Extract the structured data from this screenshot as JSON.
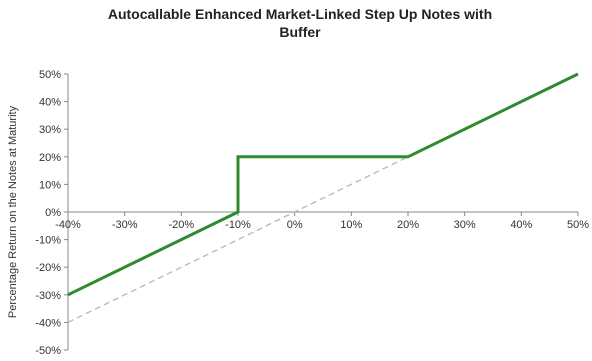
{
  "chart_data": {
    "type": "line",
    "title_lines": [
      "Autocallable Enhanced Market-Linked Step Up Notes with",
      "Buffer"
    ],
    "xlabel": "",
    "ylabel": "Percentage Return on the Notes at Maturity",
    "xlim": [
      -40,
      50
    ],
    "ylim": [
      -50,
      50
    ],
    "x_ticks": [
      "-40%",
      "-30%",
      "-20%",
      "-10%",
      "0%",
      "10%",
      "20%",
      "30%",
      "40%",
      "50%"
    ],
    "y_ticks": [
      "50%",
      "40%",
      "30%",
      "20%",
      "10%",
      "0%",
      "-10%",
      "-20%",
      "-30%",
      "-40%",
      "-50%"
    ],
    "grid": false,
    "series": [
      {
        "color": "#2e8b2e",
        "style": "solid",
        "points": [
          [
            -40,
            -30
          ],
          [
            -10,
            0
          ],
          [
            -10,
            20
          ],
          [
            20,
            20
          ],
          [
            50,
            50
          ]
        ]
      },
      {
        "color": "#bbbbbb",
        "style": "dashed",
        "points": [
          [
            -40,
            -40
          ],
          [
            20,
            20
          ]
        ]
      }
    ]
  }
}
